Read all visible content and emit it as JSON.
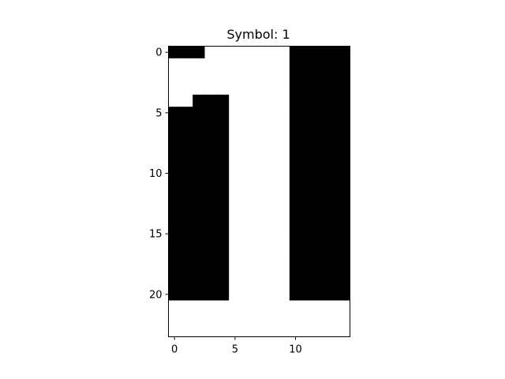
{
  "chart_data": {
    "type": "heatmap",
    "title": "Symbol: 1",
    "xlabel": "",
    "ylabel": "",
    "rows": 24,
    "cols": 15,
    "x_ticks": [
      0,
      5,
      10
    ],
    "y_ticks": [
      0,
      5,
      10,
      15,
      20
    ],
    "colormap": {
      "0": "#000000",
      "1": "#ffffff"
    },
    "grid": [
      [
        0,
        0,
        0,
        1,
        1,
        1,
        1,
        1,
        1,
        1,
        0,
        0,
        0,
        0,
        0
      ],
      [
        1,
        1,
        1,
        1,
        1,
        1,
        1,
        1,
        1,
        1,
        0,
        0,
        0,
        0,
        0
      ],
      [
        1,
        1,
        1,
        1,
        1,
        1,
        1,
        1,
        1,
        1,
        0,
        0,
        0,
        0,
        0
      ],
      [
        1,
        1,
        1,
        1,
        1,
        1,
        1,
        1,
        1,
        1,
        0,
        0,
        0,
        0,
        0
      ],
      [
        1,
        1,
        0,
        0,
        0,
        1,
        1,
        1,
        1,
        1,
        0,
        0,
        0,
        0,
        0
      ],
      [
        0,
        0,
        0,
        0,
        0,
        1,
        1,
        1,
        1,
        1,
        0,
        0,
        0,
        0,
        0
      ],
      [
        0,
        0,
        0,
        0,
        0,
        1,
        1,
        1,
        1,
        1,
        0,
        0,
        0,
        0,
        0
      ],
      [
        0,
        0,
        0,
        0,
        0,
        1,
        1,
        1,
        1,
        1,
        0,
        0,
        0,
        0,
        0
      ],
      [
        0,
        0,
        0,
        0,
        0,
        1,
        1,
        1,
        1,
        1,
        0,
        0,
        0,
        0,
        0
      ],
      [
        0,
        0,
        0,
        0,
        0,
        1,
        1,
        1,
        1,
        1,
        0,
        0,
        0,
        0,
        0
      ],
      [
        0,
        0,
        0,
        0,
        0,
        1,
        1,
        1,
        1,
        1,
        0,
        0,
        0,
        0,
        0
      ],
      [
        0,
        0,
        0,
        0,
        0,
        1,
        1,
        1,
        1,
        1,
        0,
        0,
        0,
        0,
        0
      ],
      [
        0,
        0,
        0,
        0,
        0,
        1,
        1,
        1,
        1,
        1,
        0,
        0,
        0,
        0,
        0
      ],
      [
        0,
        0,
        0,
        0,
        0,
        1,
        1,
        1,
        1,
        1,
        0,
        0,
        0,
        0,
        0
      ],
      [
        0,
        0,
        0,
        0,
        0,
        1,
        1,
        1,
        1,
        1,
        0,
        0,
        0,
        0,
        0
      ],
      [
        0,
        0,
        0,
        0,
        0,
        1,
        1,
        1,
        1,
        1,
        0,
        0,
        0,
        0,
        0
      ],
      [
        0,
        0,
        0,
        0,
        0,
        1,
        1,
        1,
        1,
        1,
        0,
        0,
        0,
        0,
        0
      ],
      [
        0,
        0,
        0,
        0,
        0,
        1,
        1,
        1,
        1,
        1,
        0,
        0,
        0,
        0,
        0
      ],
      [
        0,
        0,
        0,
        0,
        0,
        1,
        1,
        1,
        1,
        1,
        0,
        0,
        0,
        0,
        0
      ],
      [
        0,
        0,
        0,
        0,
        0,
        1,
        1,
        1,
        1,
        1,
        0,
        0,
        0,
        0,
        0
      ],
      [
        0,
        0,
        0,
        0,
        0,
        1,
        1,
        1,
        1,
        1,
        0,
        0,
        0,
        0,
        0
      ],
      [
        1,
        1,
        1,
        1,
        1,
        1,
        1,
        1,
        1,
        1,
        1,
        1,
        1,
        1,
        1
      ],
      [
        1,
        1,
        1,
        1,
        1,
        1,
        1,
        1,
        1,
        1,
        1,
        1,
        1,
        1,
        1
      ],
      [
        1,
        1,
        1,
        1,
        1,
        1,
        1,
        1,
        1,
        1,
        1,
        1,
        1,
        1,
        1
      ]
    ],
    "axis_color": "#000000",
    "background": "#ffffff"
  }
}
